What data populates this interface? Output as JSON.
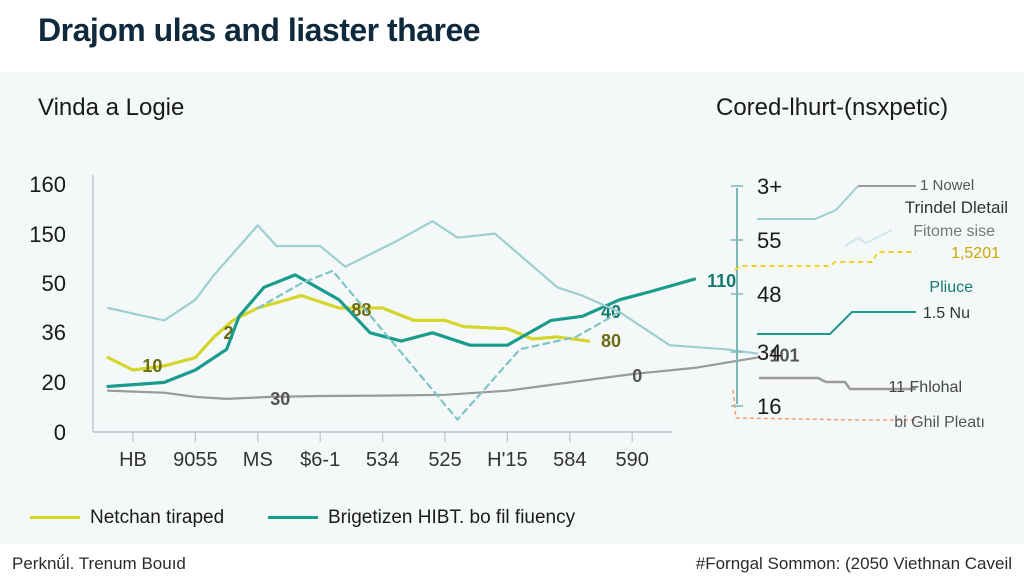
{
  "title": "Drajom ulas and liaster tharee",
  "footer": {
    "left": "Perknǘl. Trenum Bouıd",
    "right": "#Forngal Sommon: (2050 Viethnan Caveil"
  },
  "colors": {
    "lime": "#d4d62a",
    "teal": "#1a9c8c",
    "gray": "#9a9a9a",
    "light_teal": "#9ccfcf",
    "orange": "#f0a070",
    "yellow": "#f2d21c",
    "axis": "#7ab8b8"
  },
  "chart_data": [
    {
      "type": "line",
      "title": "Vinda a Logie",
      "categories": [
        "HB",
        "9055",
        "MS",
        "$6-1",
        "534",
        "525",
        "H'15",
        "584",
        "590"
      ],
      "y_ticks": [
        "0",
        "20",
        "36",
        "50",
        "150",
        "160"
      ],
      "ylim": [
        0,
        6
      ],
      "grid": false,
      "legend_position": "bottom",
      "series": [
        {
          "name": "Netchan tiraped",
          "color": "#d4d62a",
          "points": [
            [
              -0.4,
              1.8
            ],
            [
              0,
              1.5
            ],
            [
              0.5,
              1.6
            ],
            [
              1,
              1.8
            ],
            [
              1.3,
              2.3
            ],
            [
              1.6,
              2.7
            ],
            [
              2,
              3.0
            ],
            [
              2.7,
              3.3
            ],
            [
              3.3,
              3.0
            ],
            [
              4,
              3.0
            ],
            [
              4.5,
              2.7
            ],
            [
              5,
              2.7
            ],
            [
              5.3,
              2.55
            ],
            [
              6,
              2.5
            ],
            [
              6.4,
              2.25
            ],
            [
              6.8,
              2.3
            ],
            [
              7.3,
              2.2
            ]
          ],
          "labels": [
            {
              "text": "10",
              "at": [
                0.15,
                1.6
              ]
            },
            {
              "text": "2",
              "at": [
                1.45,
                2.4
              ]
            },
            {
              "text": "88",
              "at": [
                3.5,
                2.95
              ]
            },
            {
              "text": "80",
              "at": [
                7.5,
                2.2
              ]
            }
          ]
        },
        {
          "name": "Brigetizen HIBT. bo fil fiuency",
          "color": "#1a9c8c",
          "points": [
            [
              -0.4,
              1.1
            ],
            [
              0.5,
              1.2
            ],
            [
              1,
              1.5
            ],
            [
              1.5,
              2.0
            ],
            [
              1.7,
              2.8
            ],
            [
              2.1,
              3.5
            ],
            [
              2.6,
              3.8
            ],
            [
              3.3,
              3.2
            ],
            [
              3.8,
              2.4
            ],
            [
              4.3,
              2.2
            ],
            [
              4.8,
              2.4
            ],
            [
              5.4,
              2.1
            ],
            [
              6,
              2.1
            ],
            [
              6.7,
              2.7
            ],
            [
              7.2,
              2.8
            ],
            [
              7.8,
              3.2
            ],
            [
              8.3,
              3.4
            ],
            [
              9.0,
              3.7
            ]
          ],
          "labels": [
            {
              "text": "40",
              "at": [
                7.5,
                2.9
              ]
            },
            {
              "text": "110",
              "at": [
                9.2,
                3.65
              ]
            }
          ]
        },
        {
          "name": "",
          "color": "#9a9a9a",
          "points": [
            [
              -0.4,
              1.0
            ],
            [
              0.5,
              0.95
            ],
            [
              1,
              0.85
            ],
            [
              1.5,
              0.8
            ],
            [
              2.2,
              0.85
            ],
            [
              3,
              0.87
            ],
            [
              4,
              0.88
            ],
            [
              5,
              0.9
            ],
            [
              6,
              1.0
            ],
            [
              7,
              1.2
            ],
            [
              8,
              1.4
            ],
            [
              9,
              1.55
            ],
            [
              10,
              1.8
            ]
          ],
          "labels": [
            {
              "text": "30",
              "at": [
                2.2,
                0.8
              ]
            },
            {
              "text": "0",
              "at": [
                8.0,
                1.35
              ]
            },
            {
              "text": "101",
              "at": [
                10.2,
                1.85
              ]
            }
          ]
        },
        {
          "name": "",
          "color": "#9ccfcf",
          "points": [
            [
              -0.4,
              3.0
            ],
            [
              0.5,
              2.7
            ],
            [
              1,
              3.2
            ],
            [
              1.3,
              3.8
            ],
            [
              2,
              5.0
            ],
            [
              2.3,
              4.5
            ],
            [
              3,
              4.5
            ],
            [
              3.4,
              4.0
            ],
            [
              4.2,
              4.6
            ],
            [
              4.8,
              5.1
            ],
            [
              5.2,
              4.7
            ],
            [
              5.8,
              4.8
            ],
            [
              6.8,
              3.5
            ],
            [
              7.2,
              3.3
            ],
            [
              7.8,
              2.9
            ],
            [
              8.6,
              2.1
            ],
            [
              9.5,
              2.0
            ],
            [
              10,
              1.9
            ]
          ],
          "labels": []
        },
        {
          "name": "",
          "color": "#7fc4c4",
          "points": [
            [
              2,
              3.0
            ],
            [
              2.7,
              3.6
            ],
            [
              3.2,
              3.9
            ],
            [
              4.2,
              2.1
            ],
            [
              5.2,
              0.3
            ],
            [
              6.2,
              2.0
            ],
            [
              7.1,
              2.3
            ],
            [
              7.8,
              2.9
            ]
          ],
          "labels": []
        }
      ]
    },
    {
      "type": "line",
      "title": "Cored-lhurt-(nsxpetic)",
      "y_ticks": [
        "3+",
        "55",
        "48",
        "34",
        "16"
      ],
      "grid": false,
      "series": [
        {
          "name": "1 Nowel",
          "color": "#9a9a9a"
        },
        {
          "name": "Trindel Dletail",
          "color": "#9ccfcf"
        },
        {
          "name": "Fitome sise",
          "color": "#cfe6ea"
        },
        {
          "name": "1,5201",
          "color": "#f2d21c"
        },
        {
          "name": "Pliuce",
          "color": "#1a9c8c"
        },
        {
          "name": "1.5 Nu",
          "color": "#1a9c8c"
        },
        {
          "name": "11 Fhlohal",
          "color": "#9a9a9a"
        },
        {
          "name": "bi Ghil Pleatı",
          "color": "#f0a070"
        }
      ]
    }
  ]
}
